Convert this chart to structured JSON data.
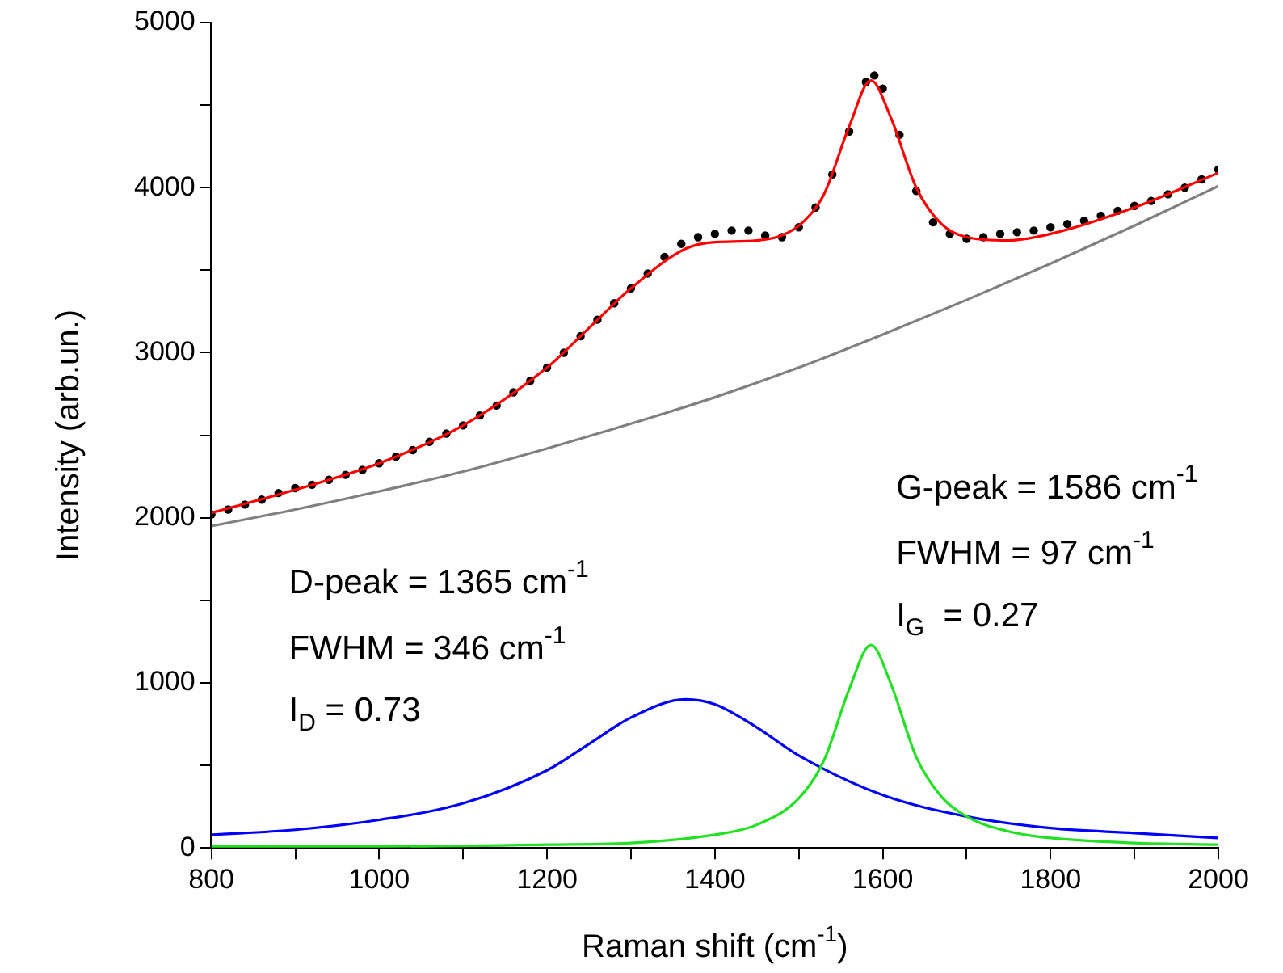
{
  "chart_data": {
    "type": "line",
    "xlabel": "Raman shift (cm$^{-1}$)",
    "ylabel": "Intensity (arb.un.)",
    "xlim": [
      800,
      2000
    ],
    "xticks": [
      800,
      {
        "value": 900,
        "label": null
      },
      1000,
      {
        "value": 1100,
        "label": null
      },
      1200,
      {
        "value": 1300,
        "label": null
      },
      1400,
      {
        "value": 1500,
        "label": null
      },
      1600,
      {
        "value": 1700,
        "label": null
      },
      1800,
      {
        "value": 1900,
        "label": null
      },
      2000
    ],
    "ylim": [
      0,
      5000
    ],
    "yticks": [
      0,
      {
        "value": 500,
        "label": null
      },
      1000,
      {
        "value": 1500,
        "label": null
      },
      2000,
      {
        "value": 2500,
        "label": null
      },
      3000,
      {
        "value": 3500,
        "label": null
      },
      4000,
      {
        "value": 4500,
        "label": null
      },
      5000
    ],
    "grid": false,
    "legend": false,
    "annotations": [
      "G-peak = 1586 cm$^{-1}$",
      "FWHM = 97 cm$^{-1}$",
      "I$_{G}$  = 0.27",
      "D-peak = 1365 cm$^{-1}$",
      "FWHM = 346 cm$^{-1}$",
      "I$_{D}$ = 0.73"
    ],
    "series": [
      {
        "type": "line",
        "color": "#808080",
        "x": [
          800,
          900,
          1000,
          1100,
          1200,
          1300,
          1400,
          1500,
          1600,
          1700,
          1800,
          1900,
          2000
        ],
        "values": [
          1950,
          2050,
          2160,
          2280,
          2420,
          2570,
          2730,
          2910,
          3110,
          3320,
          3540,
          3770,
          4010
        ]
      },
      {
        "type": "line",
        "color": "#0000ff",
        "x": [
          800,
          900,
          1000,
          1100,
          1200,
          1250,
          1300,
          1365,
          1400,
          1450,
          1500,
          1600,
          1700,
          1800,
          1900,
          2000
        ],
        "values": [
          80,
          110,
          170,
          270,
          470,
          630,
          790,
          900,
          870,
          730,
          560,
          320,
          190,
          120,
          90,
          60
        ]
      },
      {
        "type": "line",
        "color": "#22e022",
        "x": [
          800,
          1000,
          1200,
          1300,
          1400,
          1450,
          1500,
          1530,
          1560,
          1586,
          1610,
          1640,
          1670,
          1700,
          1750,
          1800,
          1900,
          2000
        ],
        "values": [
          10,
          10,
          20,
          30,
          80,
          140,
          300,
          530,
          960,
          1230,
          990,
          550,
          310,
          190,
          100,
          60,
          30,
          20
        ]
      },
      {
        "type": "scatter",
        "color": "#000000",
        "marker": "circle",
        "x": [
          800,
          820,
          840,
          860,
          880,
          900,
          920,
          940,
          960,
          980,
          1000,
          1020,
          1040,
          1060,
          1080,
          1100,
          1120,
          1140,
          1160,
          1180,
          1200,
          1220,
          1240,
          1260,
          1280,
          1300,
          1320,
          1340,
          1360,
          1380,
          1400,
          1420,
          1440,
          1460,
          1480,
          1500,
          1520,
          1540,
          1560,
          1580,
          1590,
          1600,
          1620,
          1640,
          1660,
          1680,
          1700,
          1720,
          1740,
          1760,
          1780,
          1800,
          1820,
          1840,
          1860,
          1880,
          1900,
          1920,
          1940,
          1960,
          1980,
          2000
        ],
        "values": [
          2020,
          2050,
          2080,
          2110,
          2150,
          2180,
          2200,
          2230,
          2260,
          2290,
          2330,
          2370,
          2410,
          2460,
          2510,
          2560,
          2620,
          2680,
          2760,
          2830,
          2910,
          3000,
          3100,
          3200,
          3300,
          3390,
          3480,
          3580,
          3660,
          3700,
          3720,
          3740,
          3740,
          3710,
          3700,
          3760,
          3880,
          4080,
          4340,
          4640,
          4680,
          4600,
          4320,
          3980,
          3790,
          3720,
          3690,
          3700,
          3720,
          3730,
          3740,
          3760,
          3780,
          3800,
          3830,
          3860,
          3890,
          3920,
          3960,
          4000,
          4050,
          4110
        ]
      },
      {
        "type": "line",
        "color": "#ff0000",
        "x": [
          800,
          900,
          1000,
          1100,
          1200,
          1250,
          1300,
          1365,
          1400,
          1450,
          1500,
          1530,
          1560,
          1586,
          1610,
          1640,
          1670,
          1700,
          1750,
          1800,
          1900,
          2000
        ],
        "values": [
          2030,
          2170,
          2330,
          2560,
          2910,
          3150,
          3390,
          3630,
          3670,
          3680,
          3770,
          3960,
          4370,
          4650,
          4420,
          4000,
          3780,
          3700,
          3680,
          3720,
          3880,
          4090
        ]
      }
    ]
  }
}
